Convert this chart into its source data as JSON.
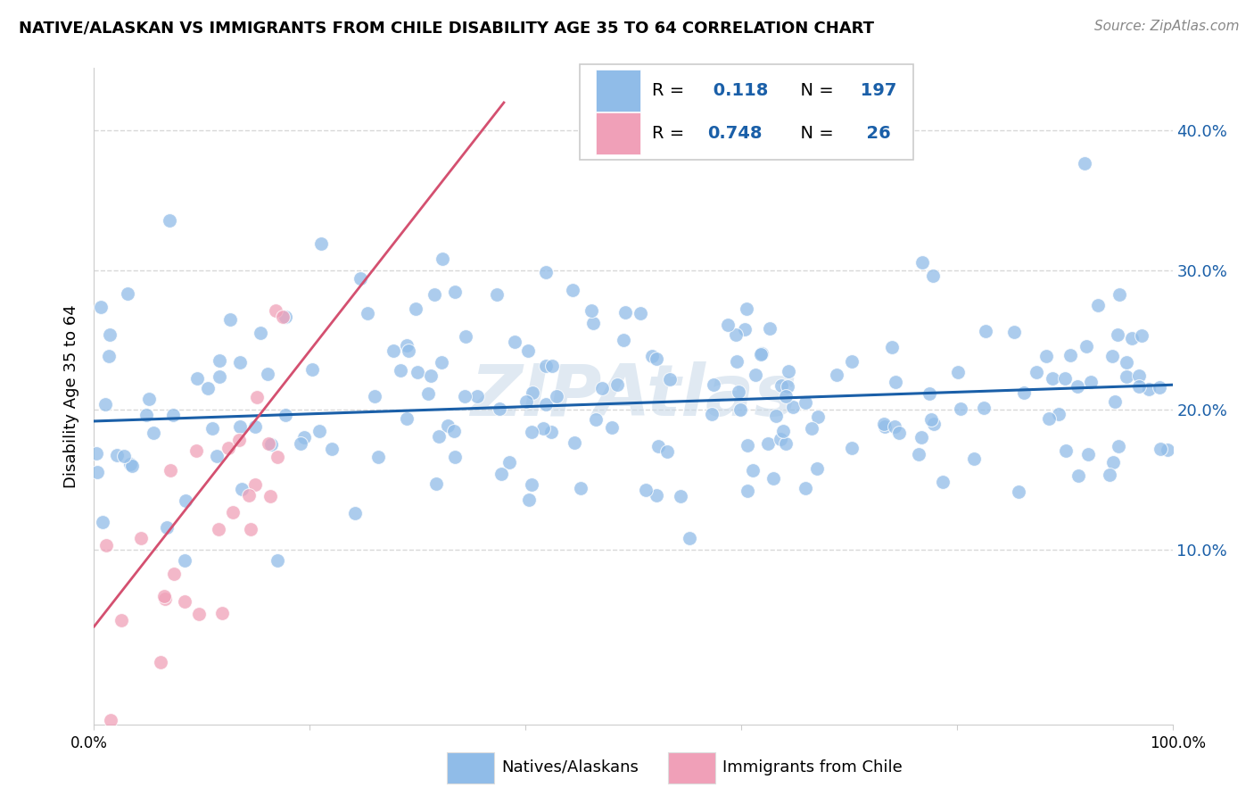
{
  "title": "NATIVE/ALASKAN VS IMMIGRANTS FROM CHILE DISABILITY AGE 35 TO 64 CORRELATION CHART",
  "source": "Source: ZipAtlas.com",
  "ylabel": "Disability Age 35 to 64",
  "xlim": [
    0.0,
    1.0
  ],
  "ylim": [
    -0.025,
    0.445
  ],
  "legend_label_blue": "Natives/Alaskans",
  "legend_label_pink": "Immigrants from Chile",
  "r_blue": 0.118,
  "n_blue": 197,
  "r_pink": 0.748,
  "n_pink": 26,
  "blue_color": "#90bce8",
  "pink_color": "#f0a0b8",
  "blue_line_color": "#1a5fa8",
  "pink_line_color": "#d45070",
  "watermark": "ZIPAtlas",
  "background_color": "#ffffff",
  "grid_color": "#d8d8d8",
  "yticks": [
    0.0,
    0.1,
    0.2,
    0.3,
    0.4
  ],
  "ytick_right_labels": [
    "10.0%",
    "20.0%",
    "30.0%",
    "40.0%"
  ],
  "blue_line_x": [
    0.0,
    1.0
  ],
  "blue_line_y": [
    0.192,
    0.218
  ],
  "pink_line_x": [
    0.0,
    0.38
  ],
  "pink_line_y": [
    0.045,
    0.42
  ],
  "seed": 12
}
